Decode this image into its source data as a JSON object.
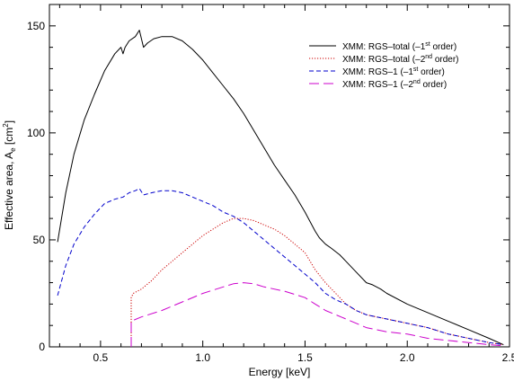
{
  "chart_data": {
    "type": "line",
    "title": "",
    "xlabel": "Energy [keV]",
    "ylabel": {
      "main": "Effective area, A",
      "subscript": "e",
      "unit_open": " [cm",
      "unit_sup": "2",
      "unit_close": "]"
    },
    "xlim": [
      0.25,
      2.5
    ],
    "ylim": [
      0,
      160
    ],
    "x_ticks": [
      "0.5",
      "1.0",
      "1.5",
      "2.0",
      "2.5"
    ],
    "y_ticks": [
      "0",
      "50",
      "100",
      "150"
    ],
    "grid": false,
    "legend_position": "top-right",
    "series": [
      {
        "name": "XMM: RGS-total (-1st order)",
        "legend": {
          "pre": "XMM: RGS–total (–1",
          "sup": "st",
          "post": " order)"
        },
        "color": "#000000",
        "style": "solid",
        "points": [
          [
            0.29,
            49
          ],
          [
            0.33,
            72
          ],
          [
            0.37,
            90
          ],
          [
            0.42,
            106
          ],
          [
            0.47,
            118
          ],
          [
            0.52,
            129
          ],
          [
            0.57,
            137
          ],
          [
            0.6,
            140
          ],
          [
            0.61,
            137
          ],
          [
            0.62,
            140
          ],
          [
            0.64,
            143
          ],
          [
            0.67,
            145
          ],
          [
            0.69,
            148
          ],
          [
            0.7,
            144
          ],
          [
            0.71,
            140
          ],
          [
            0.73,
            142
          ],
          [
            0.76,
            144
          ],
          [
            0.8,
            145
          ],
          [
            0.85,
            145
          ],
          [
            0.9,
            143
          ],
          [
            0.95,
            139
          ],
          [
            1.0,
            134
          ],
          [
            1.05,
            128
          ],
          [
            1.1,
            122
          ],
          [
            1.15,
            116
          ],
          [
            1.2,
            109
          ],
          [
            1.25,
            101
          ],
          [
            1.3,
            93
          ],
          [
            1.35,
            85
          ],
          [
            1.4,
            78
          ],
          [
            1.45,
            71
          ],
          [
            1.5,
            63
          ],
          [
            1.55,
            54
          ],
          [
            1.57,
            51
          ],
          [
            1.6,
            48
          ],
          [
            1.63,
            46
          ],
          [
            1.67,
            43
          ],
          [
            1.7,
            40
          ],
          [
            1.75,
            35
          ],
          [
            1.8,
            30
          ],
          [
            1.83,
            29
          ],
          [
            1.87,
            27
          ],
          [
            1.9,
            25
          ],
          [
            2.0,
            20
          ],
          [
            2.1,
            16
          ],
          [
            2.2,
            12
          ],
          [
            2.3,
            8
          ],
          [
            2.4,
            4
          ],
          [
            2.47,
            1
          ]
        ]
      },
      {
        "name": "XMM: RGS-total (-2nd order)",
        "legend": {
          "pre": "XMM: RGS–total (–2",
          "sup": "nd",
          "post": " order)"
        },
        "color": "#cc0000",
        "style": "dotted",
        "points": [
          [
            0.65,
            0
          ],
          [
            0.65,
            23
          ],
          [
            0.66,
            25
          ],
          [
            0.68,
            26
          ],
          [
            0.7,
            27
          ],
          [
            0.75,
            31
          ],
          [
            0.8,
            36
          ],
          [
            0.85,
            40
          ],
          [
            0.9,
            44
          ],
          [
            0.95,
            48
          ],
          [
            1.0,
            52
          ],
          [
            1.05,
            55
          ],
          [
            1.1,
            58
          ],
          [
            1.15,
            60
          ],
          [
            1.2,
            60
          ],
          [
            1.25,
            59
          ],
          [
            1.3,
            57
          ],
          [
            1.35,
            55
          ],
          [
            1.4,
            52
          ],
          [
            1.45,
            48
          ],
          [
            1.5,
            44
          ],
          [
            1.55,
            36
          ],
          [
            1.6,
            30
          ],
          [
            1.65,
            25
          ],
          [
            1.7,
            20
          ],
          [
            1.75,
            17
          ],
          [
            1.8,
            15
          ],
          [
            1.85,
            14
          ],
          [
            1.9,
            13
          ],
          [
            2.0,
            11
          ],
          [
            2.1,
            9
          ],
          [
            2.2,
            6
          ],
          [
            2.3,
            4
          ],
          [
            2.4,
            2
          ],
          [
            2.47,
            1
          ]
        ]
      },
      {
        "name": "XMM: RGS-1 (-1st order)",
        "legend": {
          "pre": "XMM: RGS–1 (–1",
          "sup": "st",
          "post": " order)"
        },
        "color": "#0000cc",
        "style": "dashed",
        "points": [
          [
            0.29,
            24
          ],
          [
            0.33,
            38
          ],
          [
            0.37,
            48
          ],
          [
            0.42,
            56
          ],
          [
            0.47,
            62
          ],
          [
            0.52,
            67
          ],
          [
            0.57,
            69
          ],
          [
            0.61,
            70
          ],
          [
            0.64,
            72
          ],
          [
            0.67,
            73
          ],
          [
            0.69,
            74
          ],
          [
            0.71,
            71
          ],
          [
            0.75,
            72
          ],
          [
            0.8,
            73
          ],
          [
            0.85,
            73
          ],
          [
            0.9,
            72
          ],
          [
            0.95,
            70
          ],
          [
            1.0,
            68
          ],
          [
            1.05,
            66
          ],
          [
            1.1,
            63
          ],
          [
            1.15,
            61
          ],
          [
            1.2,
            58
          ],
          [
            1.25,
            54
          ],
          [
            1.3,
            50
          ],
          [
            1.35,
            46
          ],
          [
            1.4,
            42
          ],
          [
            1.45,
            38
          ],
          [
            1.5,
            34
          ],
          [
            1.55,
            30
          ],
          [
            1.6,
            25
          ],
          [
            1.65,
            22
          ],
          [
            1.7,
            20
          ],
          [
            1.75,
            17
          ],
          [
            1.8,
            15
          ],
          [
            1.85,
            14
          ],
          [
            1.9,
            13
          ],
          [
            2.0,
            11
          ],
          [
            2.1,
            9
          ],
          [
            2.2,
            6
          ],
          [
            2.3,
            4
          ],
          [
            2.4,
            2
          ],
          [
            2.47,
            1
          ]
        ]
      },
      {
        "name": "XMM: RGS-1 (-2nd order)",
        "legend": {
          "pre": "XMM: RGS–1 (–2",
          "sup": "nd",
          "post": " order)"
        },
        "color": "#cc00cc",
        "style": "longdash",
        "points": [
          [
            0.65,
            0
          ],
          [
            0.65,
            12
          ],
          [
            0.7,
            14
          ],
          [
            0.8,
            17
          ],
          [
            0.9,
            21
          ],
          [
            1.0,
            25
          ],
          [
            1.1,
            28
          ],
          [
            1.15,
            29.5
          ],
          [
            1.2,
            30
          ],
          [
            1.25,
            29.5
          ],
          [
            1.3,
            28
          ],
          [
            1.4,
            26
          ],
          [
            1.5,
            23
          ],
          [
            1.55,
            20
          ],
          [
            1.6,
            17
          ],
          [
            1.7,
            13
          ],
          [
            1.8,
            9
          ],
          [
            1.9,
            7
          ],
          [
            2.0,
            6
          ],
          [
            2.1,
            4
          ],
          [
            2.2,
            3
          ],
          [
            2.3,
            2
          ],
          [
            2.4,
            1
          ],
          [
            2.47,
            0.5
          ]
        ]
      }
    ]
  }
}
